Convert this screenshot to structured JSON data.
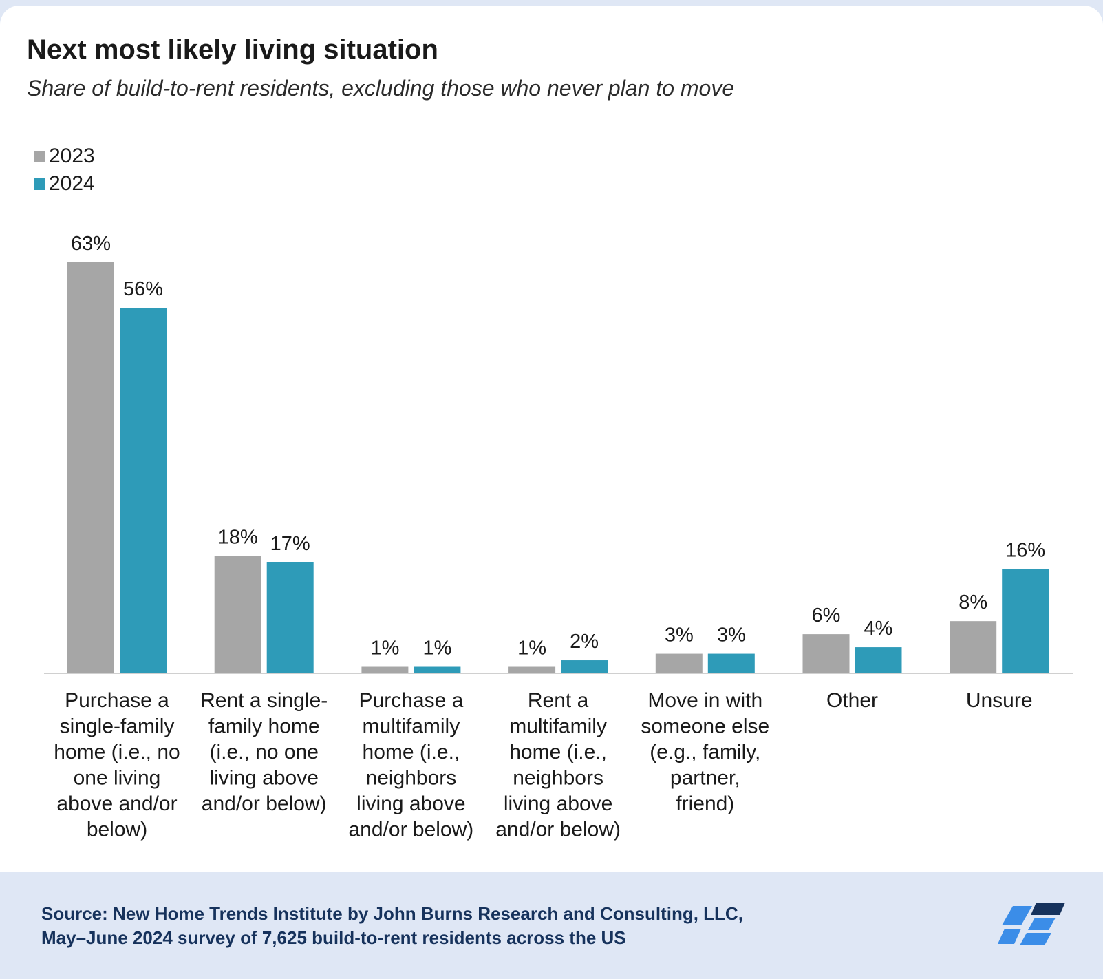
{
  "header": {
    "title": "Next most likely living situation",
    "subtitle": "Share of build-to-rent residents, excluding those who never plan to move"
  },
  "legend": [
    {
      "label": "2023",
      "color": "#a6a6a6"
    },
    {
      "label": "2024",
      "color": "#2e9bb8"
    }
  ],
  "chart_data": {
    "type": "bar",
    "title": "Next most likely living situation",
    "subtitle": "Share of build-to-rent residents, excluding those who never plan to move",
    "categories": [
      [
        "Purchase a",
        "single-family",
        "home (i.e., no",
        "one living",
        "above and/or",
        "below)"
      ],
      [
        "Rent a single-",
        "family home",
        "(i.e., no one",
        "living above",
        "and/or below)"
      ],
      [
        "Purchase a",
        "multifamily",
        "home (i.e.,",
        "neighbors",
        "living above",
        "and/or below)"
      ],
      [
        "Rent a",
        "multifamily",
        "home (i.e.,",
        "neighbors",
        "living above",
        "and/or below)"
      ],
      [
        "Move in with",
        "someone else",
        "(e.g., family,",
        "partner,",
        "friend)"
      ],
      [
        "Other"
      ],
      [
        "Unsure"
      ]
    ],
    "series": [
      {
        "name": "2023",
        "color": "#a6a6a6",
        "values": [
          63,
          18,
          1,
          1,
          3,
          6,
          8
        ]
      },
      {
        "name": "2024",
        "color": "#2e9bb8",
        "values": [
          56,
          17,
          1,
          2,
          3,
          4,
          16
        ]
      }
    ],
    "value_suffix": "%",
    "ylim": [
      0,
      70
    ],
    "grid": false,
    "legend_position": "top-left"
  },
  "footer": {
    "source_line1": "Source: New Home Trends Institute by John Burns Research and Consulting, LLC,",
    "source_line2": "May–June 2024 survey of 7,625 build-to-rent residents across the US"
  },
  "logo": {
    "icon": "jbrec-logo-icon",
    "colors": [
      "#3b8de8",
      "#16325c"
    ]
  }
}
